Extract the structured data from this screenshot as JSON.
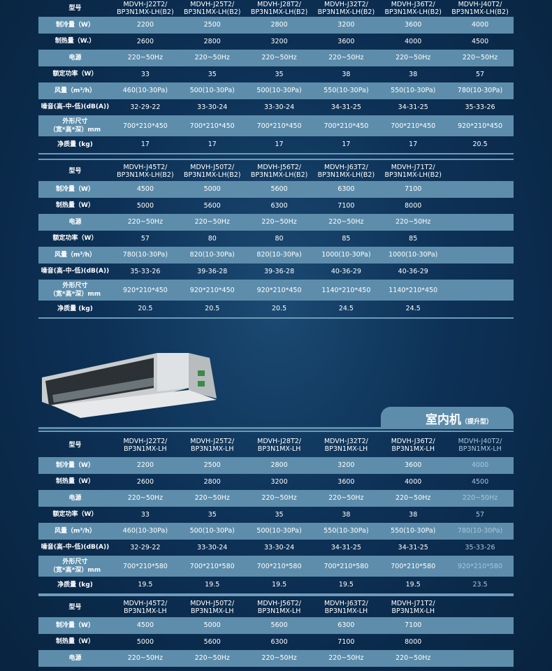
{
  "section_title": "室内机",
  "section_subtitle": "（提升型）",
  "tables": [
    {
      "headers": [
        "型号",
        "MDVH-J22T2/\nBP3N1MX-LH(B2)",
        "MDVH-J25T2/\nBP3N1MX-LH(B2)",
        "MDVH-J28T2/\nBP3N1MX-LH(B2)",
        "MDVH-J32T2/\nBP3N1MX-LH(B2)",
        "MDVH-J36T2/\nBP3N1MX-LH(B2)",
        "MDVH-J40T2/\nBP3N1MX-LH(B2)"
      ],
      "rows": [
        {
          "label": "制冷量（W）",
          "values": [
            "2200",
            "2500",
            "2800",
            "3200",
            "3600",
            "4000"
          ]
        },
        {
          "label": "制热量（W.）",
          "values": [
            "2600",
            "2800",
            "3200",
            "3600",
            "4000",
            "4500"
          ]
        },
        {
          "label": "电源",
          "values": [
            "220~50Hz",
            "220~50Hz",
            "220~50Hz",
            "220~50Hz",
            "220~50Hz",
            "220~50Hz"
          ]
        },
        {
          "label": "额定功率（W）",
          "values": [
            "33",
            "35",
            "35",
            "38",
            "38",
            "57"
          ]
        },
        {
          "label": "风量（m³/h）",
          "values": [
            "460(10-30Pa)",
            "500(10-30Pa)",
            "500(10-30Pa)",
            "550(10-30Pa)",
            "550(10-30Pa)",
            "780(10-30Pa)"
          ]
        },
        {
          "label": "噪音(高-中-低)(dB(A))",
          "values": [
            "32-29-22",
            "33-30-24",
            "33-30-24",
            "34-31-25",
            "34-31-25",
            "35-33-26"
          ]
        },
        {
          "label": "外形尺寸\n（宽*高*深）mm",
          "values": [
            "700*210*450",
            "700*210*450",
            "700*210*450",
            "700*210*450",
            "700*210*450",
            "920*210*450"
          ]
        },
        {
          "label": "净质量 (kg)",
          "values": [
            "17",
            "17",
            "17",
            "17",
            "17",
            "20.5"
          ]
        }
      ]
    },
    {
      "headers": [
        "型号",
        "MDVH-J45T2/\nBP3N1MX-LH(B2)",
        "MDVH-J50T2/\nBP3N1MX-LH(B2)",
        "MDVH-J56T2/\nBP3N1MX-LH(B2)",
        "MDVH-J63T2/\nBP3N1MX-LH(B2)",
        "MDVH-J71T2/\nBP3N1MX-LH(B2)",
        ""
      ],
      "rows": [
        {
          "label": "制冷量（W）",
          "values": [
            "4500",
            "5000",
            "5600",
            "6300",
            "7100",
            ""
          ]
        },
        {
          "label": "制热量（W）",
          "values": [
            "5000",
            "5600",
            "6300",
            "7100",
            "8000",
            ""
          ]
        },
        {
          "label": "电源",
          "values": [
            "220~50Hz",
            "220~50Hz",
            "220~50Hz",
            "220~50Hz",
            "220~50Hz",
            ""
          ]
        },
        {
          "label": "额定功率（W）",
          "values": [
            "57",
            "80",
            "80",
            "85",
            "85",
            ""
          ]
        },
        {
          "label": "风量（m³/h）",
          "values": [
            "780(10-30Pa)",
            "820(10-30Pa)",
            "820(10-30Pa)",
            "1000(10-30Pa)",
            "1000(10-30Pa)",
            ""
          ]
        },
        {
          "label": "噪音(高-中-低)(dB(A))",
          "values": [
            "35-33-26",
            "39-36-28",
            "39-36-28",
            "40-36-29",
            "40-36-29",
            ""
          ]
        },
        {
          "label": "外形尺寸\n（宽*高*深）mm",
          "values": [
            "920*210*450",
            "920*210*450",
            "920*210*450",
            "1140*210*450",
            "1140*210*450",
            ""
          ]
        },
        {
          "label": "净质量 (kg)",
          "values": [
            "20.5",
            "20.5",
            "20.5",
            "24.5",
            "24.5",
            ""
          ]
        }
      ]
    },
    {
      "headers": [
        "型号",
        "MDVH-J22T2/\nBP3N1MX-LH",
        "MDVH-J25T2/\nBP3N1MX-LH",
        "MDVH-J28T2/\nBP3N1MX-LH",
        "MDVH-J32T2/\nBP3N1MX-LH",
        "MDVH-J36T2/\nBP3N1MX-LH",
        "MDVH-J40T2/\nBP3N1MX-LH"
      ],
      "rows": [
        {
          "label": "制冷量（W）",
          "values": [
            "2200",
            "2500",
            "2800",
            "3200",
            "3600",
            "4000"
          ]
        },
        {
          "label": "制热量（W）",
          "values": [
            "2600",
            "2800",
            "3200",
            "3600",
            "4000",
            "4500"
          ]
        },
        {
          "label": "电源",
          "values": [
            "220~50Hz",
            "220~50Hz",
            "220~50Hz",
            "220~50Hz",
            "220~50Hz",
            "220~50Hz"
          ]
        },
        {
          "label": "额定功率（W）",
          "values": [
            "33",
            "35",
            "35",
            "38",
            "38",
            "57"
          ]
        },
        {
          "label": "风量（m³/h）",
          "values": [
            "460(10-30Pa)",
            "500(10-30Pa)",
            "500(10-30Pa)",
            "550(10-30Pa)",
            "550(10-30Pa)",
            "780(10-30Pa)"
          ]
        },
        {
          "label": "噪音(高-中-低)(dB(A))",
          "values": [
            "32-29-22",
            "33-30-24",
            "33-30-24",
            "34-31-25",
            "34-31-25",
            "35-33-26"
          ]
        },
        {
          "label": "外形尺寸\n（宽*高*深）mm",
          "values": [
            "700*210*580",
            "700*210*580",
            "700*210*580",
            "700*210*580",
            "700*210*580",
            "920*210*580"
          ]
        },
        {
          "label": "净质量 (kg)",
          "values": [
            "19.5",
            "19.5",
            "19.5",
            "19.5",
            "19.5",
            "23.5"
          ]
        }
      ]
    },
    {
      "headers": [
        "型号",
        "MDVH-J45T2/\nBP3N1MX-LH",
        "MDVH-J50T2/\nBP3N1MX-LH",
        "MDVH-J56T2/\nBP3N1MX-LH",
        "MDVH-J63T2/\nBP3N1MX-LH",
        "MDVH-J71T2/\nBP3N1MX-LH",
        ""
      ],
      "rows": [
        {
          "label": "制冷量（W）",
          "values": [
            "4500",
            "5000",
            "5600",
            "6300",
            "7100",
            ""
          ]
        },
        {
          "label": "制热量（W）",
          "values": [
            "5000",
            "5600",
            "6300",
            "7100",
            "8000",
            ""
          ]
        },
        {
          "label": "电源",
          "values": [
            "220~50Hz",
            "220~50Hz",
            "220~50Hz",
            "220~50Hz",
            "220~50Hz",
            ""
          ]
        }
      ]
    }
  ]
}
